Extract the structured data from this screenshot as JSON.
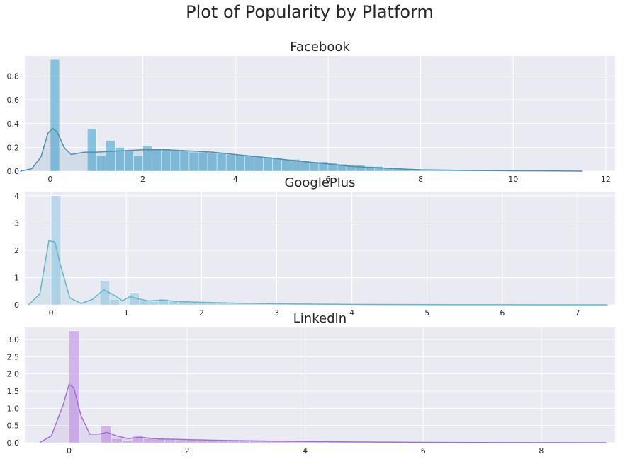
{
  "title": "Plot of Popularity by Platform",
  "chart_data": [
    {
      "type": "histogram",
      "title": "Facebook",
      "xlim": [
        -0.55,
        12.2
      ],
      "ylim": [
        0,
        0.97
      ],
      "xticks": [
        0,
        2,
        4,
        6,
        8,
        10,
        12
      ],
      "yticks": [
        0.0,
        0.2,
        0.4,
        0.6,
        0.8
      ],
      "ytick_labels": [
        "0.0",
        "0.2",
        "0.4",
        "0.6",
        "0.8"
      ],
      "bar_color": "#5fb2d4",
      "line_color": "#4a90b0",
      "bin_width": 0.2,
      "bins": [
        [
          0.0,
          0.94
        ],
        [
          0.2,
          0.0
        ],
        [
          0.4,
          0.0
        ],
        [
          0.6,
          0.0
        ],
        [
          0.8,
          0.36
        ],
        [
          1.0,
          0.13
        ],
        [
          1.2,
          0.26
        ],
        [
          1.4,
          0.2
        ],
        [
          1.6,
          0.17
        ],
        [
          1.8,
          0.13
        ],
        [
          2.0,
          0.21
        ],
        [
          2.2,
          0.18
        ],
        [
          2.4,
          0.19
        ],
        [
          2.6,
          0.17
        ],
        [
          2.8,
          0.17
        ],
        [
          3.0,
          0.16
        ],
        [
          3.2,
          0.16
        ],
        [
          3.4,
          0.15
        ],
        [
          3.6,
          0.15
        ],
        [
          3.8,
          0.14
        ],
        [
          4.0,
          0.14
        ],
        [
          4.2,
          0.13
        ],
        [
          4.4,
          0.12
        ],
        [
          4.6,
          0.12
        ],
        [
          4.8,
          0.11
        ],
        [
          5.0,
          0.1
        ],
        [
          5.2,
          0.1
        ],
        [
          5.4,
          0.09
        ],
        [
          5.6,
          0.08
        ],
        [
          5.8,
          0.08
        ],
        [
          6.0,
          0.07
        ],
        [
          6.2,
          0.06
        ],
        [
          6.4,
          0.05
        ],
        [
          6.6,
          0.05
        ],
        [
          6.8,
          0.04
        ],
        [
          7.0,
          0.04
        ],
        [
          7.2,
          0.03
        ],
        [
          7.4,
          0.03
        ],
        [
          7.6,
          0.02
        ],
        [
          7.8,
          0.02
        ],
        [
          8.0,
          0.015
        ],
        [
          8.2,
          0.012
        ],
        [
          8.4,
          0.01
        ],
        [
          8.6,
          0.008
        ],
        [
          8.8,
          0.006
        ],
        [
          9.0,
          0.005
        ],
        [
          9.2,
          0.004
        ],
        [
          9.4,
          0.003
        ],
        [
          9.6,
          0.003
        ],
        [
          9.8,
          0.002
        ],
        [
          10.0,
          0.002
        ],
        [
          10.2,
          0.002
        ],
        [
          10.4,
          0.001
        ],
        [
          10.6,
          0.001
        ],
        [
          10.8,
          0.001
        ],
        [
          11.0,
          0.001
        ],
        [
          11.2,
          0.001
        ]
      ],
      "kde": [
        [
          -0.65,
          0.0
        ],
        [
          -0.4,
          0.02
        ],
        [
          -0.2,
          0.12
        ],
        [
          -0.05,
          0.32
        ],
        [
          0.05,
          0.36
        ],
        [
          0.15,
          0.33
        ],
        [
          0.3,
          0.2
        ],
        [
          0.45,
          0.14
        ],
        [
          0.6,
          0.15
        ],
        [
          0.75,
          0.16
        ],
        [
          1.0,
          0.16
        ],
        [
          1.5,
          0.17
        ],
        [
          2.0,
          0.18
        ],
        [
          2.5,
          0.18
        ],
        [
          3.0,
          0.17
        ],
        [
          3.5,
          0.16
        ],
        [
          4.0,
          0.14
        ],
        [
          4.5,
          0.12
        ],
        [
          5.0,
          0.1
        ],
        [
          5.5,
          0.08
        ],
        [
          6.0,
          0.06
        ],
        [
          6.5,
          0.04
        ],
        [
          7.0,
          0.03
        ],
        [
          7.5,
          0.02
        ],
        [
          8.0,
          0.012
        ],
        [
          9.0,
          0.006
        ],
        [
          10.0,
          0.003
        ],
        [
          11.0,
          0.001
        ],
        [
          11.5,
          0.0
        ]
      ]
    },
    {
      "type": "histogram",
      "title": "GooglePlus",
      "xlim": [
        -0.35,
        7.5
      ],
      "ylim": [
        0,
        4.15
      ],
      "xticks": [
        0,
        1,
        2,
        3,
        4,
        5,
        6,
        7
      ],
      "yticks": [
        0,
        1,
        2,
        3,
        4
      ],
      "ytick_labels": [
        "0",
        "1",
        "2",
        "3",
        "4"
      ],
      "bar_color": "#a8cfe6",
      "line_color": "#5fb8c8",
      "bin_width": 0.13,
      "bins": [
        [
          0.0,
          4.0
        ],
        [
          0.13,
          0.0
        ],
        [
          0.26,
          0.0
        ],
        [
          0.39,
          0.0
        ],
        [
          0.52,
          0.0
        ],
        [
          0.65,
          0.9
        ],
        [
          0.78,
          0.2
        ],
        [
          0.91,
          0.0
        ],
        [
          1.04,
          0.45
        ],
        [
          1.17,
          0.15
        ],
        [
          1.3,
          0.12
        ],
        [
          1.43,
          0.22
        ],
        [
          1.56,
          0.12
        ],
        [
          1.69,
          0.1
        ],
        [
          1.82,
          0.09
        ],
        [
          1.95,
          0.08
        ],
        [
          2.08,
          0.07
        ],
        [
          2.21,
          0.06
        ],
        [
          2.34,
          0.05
        ],
        [
          2.47,
          0.05
        ],
        [
          2.6,
          0.04
        ],
        [
          2.73,
          0.04
        ],
        [
          2.86,
          0.03
        ],
        [
          2.99,
          0.03
        ],
        [
          3.12,
          0.02
        ],
        [
          3.25,
          0.02
        ],
        [
          3.38,
          0.015
        ],
        [
          3.51,
          0.015
        ],
        [
          3.64,
          0.01
        ],
        [
          3.77,
          0.01
        ],
        [
          3.9,
          0.008
        ],
        [
          4.03,
          0.006
        ],
        [
          4.16,
          0.005
        ],
        [
          4.29,
          0.004
        ],
        [
          4.42,
          0.003
        ]
      ],
      "kde": [
        [
          -0.3,
          0.0
        ],
        [
          -0.15,
          0.4
        ],
        [
          -0.03,
          2.35
        ],
        [
          0.05,
          2.3
        ],
        [
          0.13,
          1.4
        ],
        [
          0.25,
          0.25
        ],
        [
          0.4,
          0.05
        ],
        [
          0.55,
          0.2
        ],
        [
          0.7,
          0.55
        ],
        [
          0.82,
          0.38
        ],
        [
          0.95,
          0.15
        ],
        [
          1.05,
          0.3
        ],
        [
          1.15,
          0.22
        ],
        [
          1.3,
          0.14
        ],
        [
          1.45,
          0.17
        ],
        [
          1.7,
          0.12
        ],
        [
          2.0,
          0.09
        ],
        [
          2.5,
          0.06
        ],
        [
          3.0,
          0.04
        ],
        [
          3.5,
          0.025
        ],
        [
          4.0,
          0.015
        ],
        [
          5.0,
          0.006
        ],
        [
          6.0,
          0.003
        ],
        [
          7.0,
          0.001
        ],
        [
          7.4,
          0.0
        ]
      ]
    },
    {
      "type": "histogram",
      "title": "LinkedIn",
      "xlim": [
        -0.75,
        9.25
      ],
      "ylim": [
        0,
        3.35
      ],
      "xticks": [
        0,
        2,
        4,
        6,
        8
      ],
      "yticks": [
        0.0,
        0.5,
        1.0,
        1.5,
        2.0,
        2.5,
        3.0
      ],
      "ytick_labels": [
        "0.0",
        "0.5",
        "1.0",
        "1.5",
        "2.0",
        "2.5",
        "3.0"
      ],
      "bar_color": "#c8a0e6",
      "line_color": "#a070d0",
      "bin_width": 0.18,
      "bins": [
        [
          0.0,
          3.25
        ],
        [
          0.18,
          0.0
        ],
        [
          0.36,
          0.0
        ],
        [
          0.54,
          0.48
        ],
        [
          0.72,
          0.12
        ],
        [
          0.9,
          0.05
        ],
        [
          1.08,
          0.22
        ],
        [
          1.26,
          0.12
        ],
        [
          1.44,
          0.1
        ],
        [
          1.62,
          0.09
        ],
        [
          1.8,
          0.08
        ],
        [
          1.98,
          0.08
        ],
        [
          2.16,
          0.07
        ],
        [
          2.34,
          0.07
        ],
        [
          2.52,
          0.06
        ],
        [
          2.7,
          0.06
        ],
        [
          2.88,
          0.05
        ],
        [
          3.06,
          0.05
        ],
        [
          3.24,
          0.05
        ],
        [
          3.42,
          0.04
        ],
        [
          3.6,
          0.04
        ],
        [
          3.78,
          0.035
        ],
        [
          3.96,
          0.03
        ],
        [
          4.14,
          0.025
        ],
        [
          4.32,
          0.02
        ],
        [
          4.5,
          0.018
        ],
        [
          4.68,
          0.015
        ],
        [
          4.86,
          0.012
        ],
        [
          5.04,
          0.01
        ],
        [
          5.22,
          0.008
        ]
      ],
      "kde": [
        [
          -0.5,
          0.0
        ],
        [
          -0.3,
          0.2
        ],
        [
          -0.1,
          1.1
        ],
        [
          0.0,
          1.7
        ],
        [
          0.08,
          1.6
        ],
        [
          0.2,
          0.8
        ],
        [
          0.35,
          0.25
        ],
        [
          0.5,
          0.25
        ],
        [
          0.65,
          0.3
        ],
        [
          0.8,
          0.2
        ],
        [
          1.0,
          0.12
        ],
        [
          1.2,
          0.16
        ],
        [
          1.5,
          0.11
        ],
        [
          2.0,
          0.09
        ],
        [
          2.5,
          0.07
        ],
        [
          3.0,
          0.055
        ],
        [
          3.5,
          0.045
        ],
        [
          4.0,
          0.035
        ],
        [
          5.0,
          0.02
        ],
        [
          6.0,
          0.01
        ],
        [
          7.0,
          0.005
        ],
        [
          8.0,
          0.002
        ],
        [
          9.1,
          0.0
        ]
      ]
    }
  ]
}
